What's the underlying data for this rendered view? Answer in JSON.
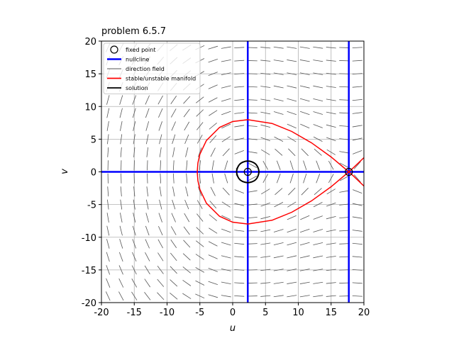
{
  "chart_data": {
    "type": "phase-portrait",
    "title": "problem 6.5.7",
    "x_label": "u",
    "y_label": "v",
    "xlim": [
      -20,
      20
    ],
    "ylim": [
      -20,
      20
    ],
    "xticks": [
      -20,
      -15,
      -10,
      -5,
      0,
      5,
      10,
      15,
      20
    ],
    "yticks": [
      -20,
      -15,
      -10,
      -5,
      0,
      5,
      10,
      15,
      20
    ],
    "grid": true,
    "legend": "upper left",
    "series": [
      {
        "name": "fixed point",
        "kind": "scatter",
        "color": "#000000",
        "x": [
          2.3,
          17.7
        ],
        "y": [
          0,
          0
        ]
      },
      {
        "name": "nullcline",
        "kind": "line",
        "color": "#0000ff",
        "x": [
          2.3,
          2.3,
          null,
          17.7,
          17.7,
          null,
          -20,
          20
        ],
        "y": [
          -20,
          20,
          null,
          -20,
          20,
          null,
          0,
          0
        ]
      },
      {
        "name": "direction field",
        "kind": "field",
        "color": "#555555"
      },
      {
        "name": "stable/unstable manifold",
        "kind": "line",
        "color": "#ff0000",
        "x": [
          20,
          18.5,
          17.7,
          15,
          12,
          9,
          6,
          2.3,
          0,
          -2,
          -4,
          -5,
          -5.3,
          -5.4,
          -5.3,
          -5,
          -4,
          -2,
          0,
          2.3,
          6,
          9,
          12,
          15,
          17.7,
          18.5,
          20
        ],
        "y": [
          -2.17,
          -0.73,
          0,
          2.28,
          4.45,
          6.18,
          7.4,
          7.98,
          7.7,
          6.8,
          4.8,
          2.69,
          1.36,
          0,
          -1.36,
          -2.69,
          -4.8,
          -6.8,
          -7.7,
          -7.98,
          -7.4,
          -6.18,
          -4.45,
          -2.28,
          0,
          0.73,
          2.17
        ]
      },
      {
        "name": "solution",
        "kind": "closed",
        "color": "#000000",
        "x": [
          4,
          3.5,
          2.3,
          1.1,
          0.6,
          1.1,
          2.3,
          3.5
        ],
        "y": [
          0,
          1.2,
          1.65,
          1.2,
          0,
          -1.2,
          -1.65,
          -1.2
        ]
      }
    ]
  }
}
